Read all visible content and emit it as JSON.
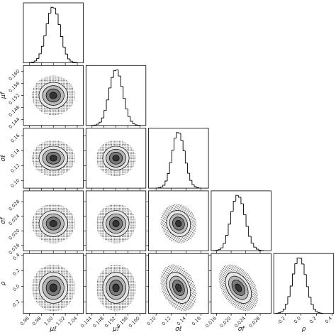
{
  "chart_data": {
    "type": "corner",
    "levels": [
      0.5,
      1,
      1.5,
      2,
      3
    ],
    "parameters": [
      {
        "label": "μℓ",
        "lim": [
          0.95,
          1.05
        ],
        "ticks": [
          0.96,
          0.98,
          {
            "value": 1,
            "label": "1.00"
          },
          1.02,
          1.04
        ],
        "mean": 1.0,
        "sd": 0.012,
        "bins": [
          0.96,
          0.964,
          0.968,
          0.972,
          0.976,
          0.98,
          0.984,
          0.988,
          0.992,
          0.996,
          1.0,
          1.004,
          1.008,
          1.012,
          1.016,
          1.02,
          1.024,
          1.028,
          1.032,
          1.036,
          1.04
        ],
        "counts": [
          2,
          5,
          12,
          28,
          60,
          110,
          180,
          260,
          330,
          370,
          365,
          325,
          255,
          175,
          105,
          58,
          26,
          11,
          5,
          2
        ]
      },
      {
        "label": "μf",
        "lim": [
          0.142,
          0.162
        ],
        "ticks": [
          0.144,
          0.148,
          0.152,
          0.156,
          {
            "value": 0.16,
            "label": "0.160"
          }
        ],
        "mean": 0.152,
        "sd": 0.0022,
        "bins": [
          0.144,
          0.1448,
          0.1456,
          0.1464,
          0.1472,
          0.148,
          0.1488,
          0.1496,
          0.1504,
          0.1512,
          0.152,
          0.1528,
          0.1536,
          0.1544,
          0.1552,
          0.156,
          0.1568,
          0.1576,
          0.1584,
          0.1592,
          0.16
        ],
        "counts": [
          1,
          3,
          9,
          22,
          50,
          100,
          170,
          250,
          320,
          365,
          370,
          330,
          260,
          180,
          110,
          60,
          28,
          12,
          4,
          1
        ]
      },
      {
        "label": "σℓ",
        "lim": [
          0.09,
          0.17
        ],
        "ticks": [
          {
            "value": 0.1,
            "label": "0.10"
          },
          0.12,
          0.14,
          0.16
        ],
        "mean": 0.13,
        "sd": 0.008,
        "bins": [
          0.1,
          0.103,
          0.106,
          0.109,
          0.112,
          0.115,
          0.118,
          0.121,
          0.124,
          0.127,
          0.13,
          0.133,
          0.136,
          0.139,
          0.142,
          0.145,
          0.148,
          0.151,
          0.154,
          0.157,
          0.16
        ],
        "counts": [
          1,
          3,
          8,
          20,
          48,
          98,
          172,
          255,
          335,
          372,
          368,
          320,
          250,
          168,
          100,
          52,
          24,
          10,
          4,
          1
        ]
      },
      {
        "label": "σf",
        "lim": [
          0.0145,
          0.031
        ],
        "ticks": [
          0.016,
          {
            "value": 0.02,
            "label": "0.020"
          },
          0.024,
          0.028
        ],
        "mean": 0.022,
        "sd": 0.0018,
        "bins": [
          0.015,
          0.0157,
          0.0164,
          0.0171,
          0.0178,
          0.0185,
          0.0192,
          0.0199,
          0.0206,
          0.0213,
          0.022,
          0.0227,
          0.0234,
          0.0241,
          0.0248,
          0.0255,
          0.0262,
          0.0269,
          0.0276,
          0.0283,
          0.029
        ],
        "counts": [
          1,
          3,
          8,
          20,
          50,
          105,
          180,
          265,
          335,
          375,
          362,
          318,
          245,
          165,
          98,
          52,
          25,
          11,
          4,
          1
        ]
      },
      {
        "label": "ρ",
        "lim": [
          -0.35,
          0.42
        ],
        "ticks": [
          -0.2,
          {
            "value": 0,
            "label": "0.0"
          },
          0.2,
          0.4
        ],
        "mean": -0.02,
        "sd": 0.1,
        "bins": [
          -0.32,
          -0.29,
          -0.26,
          -0.23,
          -0.2,
          -0.17,
          -0.14,
          -0.11,
          -0.08,
          -0.05,
          -0.02,
          0.01,
          0.04,
          0.07,
          0.1,
          0.13,
          0.16,
          0.19,
          0.22,
          0.25,
          0.28
        ],
        "counts": [
          2,
          5,
          12,
          28,
          62,
          112,
          182,
          262,
          330,
          368,
          366,
          328,
          258,
          178,
          108,
          60,
          28,
          12,
          5,
          2
        ]
      }
    ],
    "pairs": [
      [
        {
          "corr": 0.0
        }
      ],
      [
        {
          "corr": 0.0
        },
        {
          "corr": 0.0
        }
      ],
      [
        {
          "corr": 0.0
        },
        {
          "corr": 0.0
        },
        {
          "corr": -0.1
        }
      ],
      [
        {
          "corr": 0.0
        },
        {
          "corr": 0.0
        },
        {
          "corr": -0.3
        },
        {
          "corr": -0.4
        }
      ]
    ]
  }
}
